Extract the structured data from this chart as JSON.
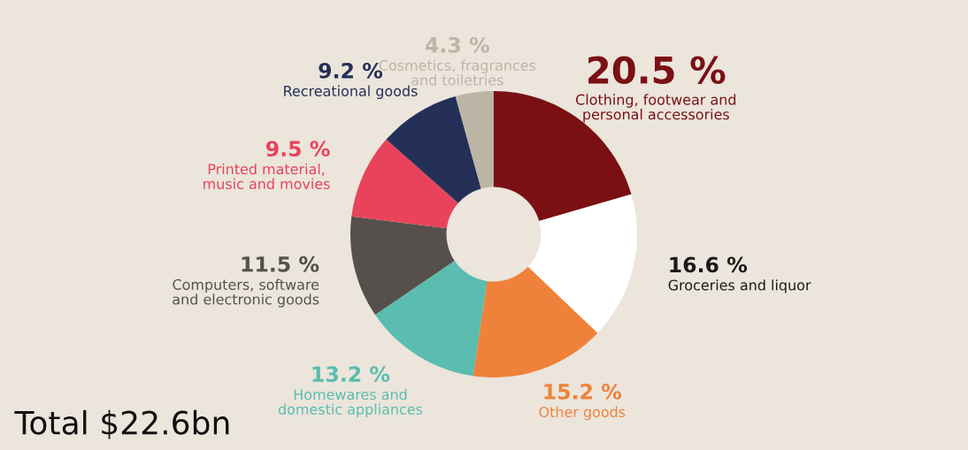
{
  "chart_data": {
    "type": "donut",
    "categories": [
      "Clothing, footwear and\npersonal accessories",
      "Groceries and liquor",
      "Other goods",
      "Homewares and\ndomestic appliances",
      "Computers, software\nand electronic goods",
      "Printed material,\nmusic and movies",
      "Recreational goods",
      "Cosmetics, fragrances\nand toiletries"
    ],
    "values": [
      20.5,
      16.6,
      15.2,
      13.2,
      11.5,
      9.5,
      9.2,
      4.3
    ],
    "colors": [
      "#7a1013",
      "#ffffff",
      "#f0813a",
      "#5bbcb0",
      "#56504d",
      "#e8435a",
      "#243058",
      "#bcb5a6"
    ],
    "value_labels": [
      "20.5 %",
      "16.6 %",
      "15.2 %",
      "13.2 %",
      "11.5 %",
      "9.5 %",
      "9.2 %",
      "4.3 %"
    ],
    "annotations": [
      "Total $22.6bn"
    ],
    "legend": false
  }
}
